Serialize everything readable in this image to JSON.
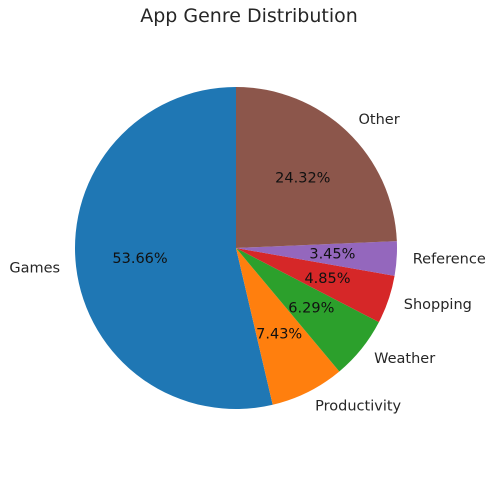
{
  "chart_data": {
    "type": "pie",
    "title": "App Genre Distribution",
    "start_angle_deg": 90,
    "direction": "counterclockwise",
    "slices": [
      {
        "label": "Games",
        "value": 53.66,
        "pct_label": "53.66%",
        "color": "#1f77b4"
      },
      {
        "label": "Productivity",
        "value": 7.43,
        "pct_label": "7.43%",
        "color": "#ff7f0e"
      },
      {
        "label": "Weather",
        "value": 6.29,
        "pct_label": "6.29%",
        "color": "#2ca02c"
      },
      {
        "label": "Shopping",
        "value": 4.85,
        "pct_label": "4.85%",
        "color": "#d62728"
      },
      {
        "label": "Reference",
        "value": 3.45,
        "pct_label": "3.45%",
        "color": "#9467bd"
      },
      {
        "label": "Other",
        "value": 24.32,
        "pct_label": "24.32%",
        "color": "#8c564b"
      }
    ]
  }
}
